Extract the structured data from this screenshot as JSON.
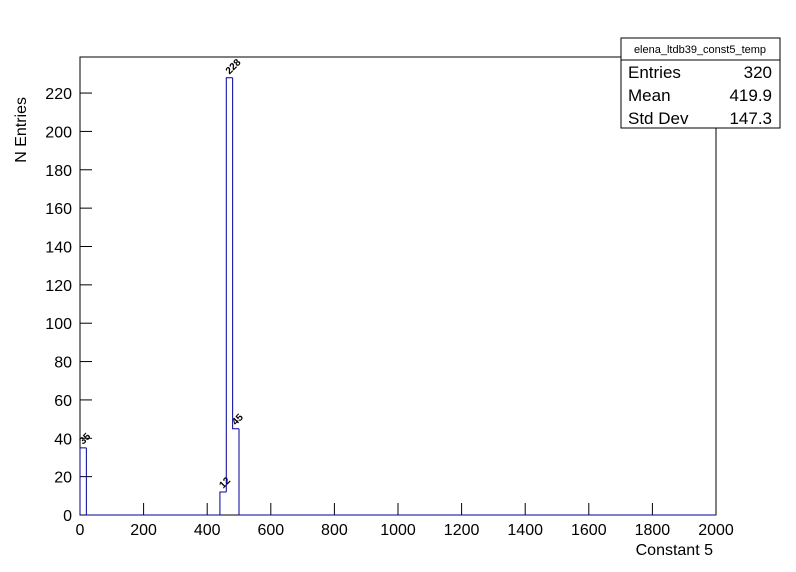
{
  "chart_data": {
    "type": "histogram",
    "x_label": "Constant 5",
    "y_label": "N Entries",
    "color": "#000099",
    "bins": [
      0,
      20,
      40,
      60,
      80,
      100,
      120,
      140,
      160,
      180,
      200,
      220,
      240,
      260,
      280,
      300,
      320,
      340,
      360,
      380,
      400,
      420,
      440,
      460,
      480,
      500,
      520,
      540,
      560,
      580,
      600,
      620,
      640,
      660,
      680,
      700,
      720,
      740,
      760,
      780,
      800,
      820,
      840,
      860,
      880,
      900,
      920,
      940,
      960,
      980,
      1000,
      1020,
      1040,
      1060,
      1080,
      1100,
      1120,
      1140,
      1160,
      1180,
      1200,
      1220,
      1240,
      1260,
      1280,
      1300,
      1320,
      1340,
      1360,
      1380,
      1400,
      1420,
      1440,
      1460,
      1480,
      1500,
      1520,
      1540,
      1560,
      1580,
      1600,
      1620,
      1640,
      1660,
      1680,
      1700,
      1720,
      1740,
      1760,
      1780,
      1800,
      1820,
      1840,
      1860,
      1880,
      1900,
      1920,
      1940,
      1960,
      1980,
      2000
    ],
    "counts": [
      35,
      0,
      0,
      0,
      0,
      0,
      0,
      0,
      0,
      0,
      0,
      0,
      0,
      0,
      0,
      0,
      0,
      0,
      0,
      0,
      0,
      0,
      12,
      228,
      45,
      0,
      0,
      0,
      0,
      0,
      0,
      0,
      0,
      0,
      0,
      0,
      0,
      0,
      0,
      0,
      0,
      0,
      0,
      0,
      0,
      0,
      0,
      0,
      0,
      0,
      0,
      0,
      0,
      0,
      0,
      0,
      0,
      0,
      0,
      0,
      0,
      0,
      0,
      0,
      0,
      0,
      0,
      0,
      0,
      0,
      0,
      0,
      0,
      0,
      0,
      0,
      0,
      0,
      0,
      0,
      0,
      0,
      0,
      0,
      0,
      0,
      0,
      0,
      0,
      0,
      0,
      0,
      0,
      0,
      0,
      0,
      0,
      0,
      0,
      0
    ],
    "xlim": [
      0,
      2000
    ],
    "ylim": [
      0,
      238.8
    ],
    "xticks": [
      0,
      200,
      400,
      600,
      800,
      1000,
      1200,
      1400,
      1600,
      1800,
      2000
    ],
    "yticks": [
      0,
      20,
      40,
      60,
      80,
      100,
      120,
      140,
      160,
      180,
      200,
      220
    ],
    "stats": {
      "title": "elena_ltdb39_const5_temp",
      "rows": [
        [
          "Entries",
          320
        ],
        [
          "Mean",
          419.9
        ],
        [
          "Std Dev",
          147.3
        ]
      ]
    }
  }
}
